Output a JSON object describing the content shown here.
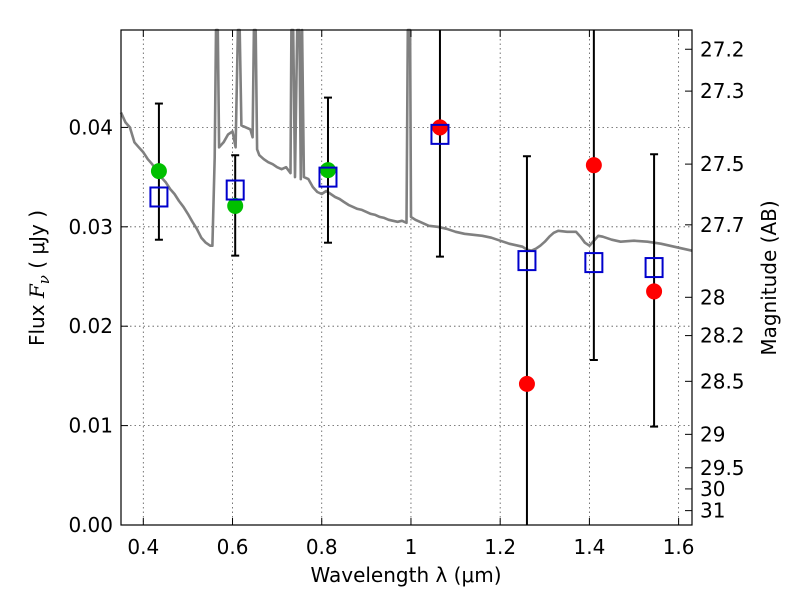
{
  "chart_data": {
    "type": "scatter",
    "xlabel": "Wavelength  λ (μm)",
    "ylabel_prefix": "Flux  ",
    "ylabel_symbol": "F",
    "ylabel_sub": "ν",
    "ylabel_suffix": "  ( μJy )",
    "y2label": "Magnitude (AB)",
    "xlim": [
      0.35,
      1.63
    ],
    "ylim": [
      0.0,
      0.0498
    ],
    "grid": true,
    "x_ticks": [
      0.4,
      0.6,
      0.8,
      1.0,
      1.2,
      1.4,
      1.6
    ],
    "x_tick_labels": [
      "0.4",
      "0.6",
      "0.8",
      "1",
      "1.2",
      "1.4",
      "1.6"
    ],
    "y_ticks": [
      0.0,
      0.01,
      0.02,
      0.03,
      0.04
    ],
    "y_tick_labels": [
      "0.00",
      "0.01",
      "0.02",
      "0.03",
      "0.04"
    ],
    "y2_tick_labels": [
      "27.2",
      "27.3",
      "27.5",
      "27.7",
      "28",
      "28.2",
      "28.5",
      "29",
      "29.5",
      "30",
      "31"
    ],
    "series": [
      {
        "marker": "circle",
        "color": "#00c000",
        "points": [
          {
            "x": 0.435,
            "y": 0.0356
          },
          {
            "x": 0.606,
            "y": 0.0321
          },
          {
            "x": 0.814,
            "y": 0.0357
          }
        ]
      },
      {
        "marker": "circle",
        "color": "#ff0000",
        "points": [
          {
            "x": 1.065,
            "y": 0.04
          },
          {
            "x": 1.26,
            "y": 0.0142
          },
          {
            "x": 1.41,
            "y": 0.0362
          },
          {
            "x": 1.545,
            "y": 0.0235
          }
        ]
      },
      {
        "marker": "square-open",
        "color": "#0000cc",
        "points": [
          {
            "x": 0.435,
            "y": 0.033,
            "ylow": 0.0287,
            "yhigh": 0.0424
          },
          {
            "x": 0.606,
            "y": 0.0337,
            "ylow": 0.0271,
            "yhigh": 0.0372
          },
          {
            "x": 0.814,
            "y": 0.035,
            "ylow": 0.0284,
            "yhigh": 0.043
          },
          {
            "x": 1.065,
            "y": 0.0393,
            "ylow": 0.027,
            "yhigh": 0.0498
          },
          {
            "x": 1.26,
            "y": 0.0266,
            "ylow": 0.0,
            "yhigh": 0.0371
          },
          {
            "x": 1.41,
            "y": 0.0264,
            "ylow": 0.0166,
            "yhigh": 0.0498
          },
          {
            "x": 1.545,
            "y": 0.0259,
            "ylow": 0.0099,
            "yhigh": 0.0373
          }
        ]
      },
      {
        "marker": "line",
        "color": "#808080",
        "points": [
          {
            "x": 0.35,
            "y": 0.0415
          },
          {
            "x": 0.36,
            "y": 0.0405
          },
          {
            "x": 0.37,
            "y": 0.04
          },
          {
            "x": 0.38,
            "y": 0.0385
          },
          {
            "x": 0.39,
            "y": 0.038
          },
          {
            "x": 0.4,
            "y": 0.0375
          },
          {
            "x": 0.41,
            "y": 0.0368
          },
          {
            "x": 0.42,
            "y": 0.0363
          },
          {
            "x": 0.43,
            "y": 0.0356
          },
          {
            "x": 0.44,
            "y": 0.035
          },
          {
            "x": 0.45,
            "y": 0.0345
          },
          {
            "x": 0.46,
            "y": 0.0338
          },
          {
            "x": 0.47,
            "y": 0.0333
          },
          {
            "x": 0.48,
            "y": 0.0326
          },
          {
            "x": 0.49,
            "y": 0.032
          },
          {
            "x": 0.5,
            "y": 0.0313
          },
          {
            "x": 0.51,
            "y": 0.0305
          },
          {
            "x": 0.52,
            "y": 0.0298
          },
          {
            "x": 0.53,
            "y": 0.0289
          },
          {
            "x": 0.54,
            "y": 0.0284
          },
          {
            "x": 0.55,
            "y": 0.0281
          },
          {
            "x": 0.555,
            "y": 0.0281
          },
          {
            "x": 0.56,
            "y": 0.037
          },
          {
            "x": 0.563,
            "y": 0.0498
          },
          {
            "x": 0.567,
            "y": 0.0498
          },
          {
            "x": 0.57,
            "y": 0.038
          },
          {
            "x": 0.58,
            "y": 0.0385
          },
          {
            "x": 0.59,
            "y": 0.0393
          },
          {
            "x": 0.6,
            "y": 0.0396
          },
          {
            "x": 0.607,
            "y": 0.038
          },
          {
            "x": 0.612,
            "y": 0.0498
          },
          {
            "x": 0.616,
            "y": 0.0498
          },
          {
            "x": 0.62,
            "y": 0.0402
          },
          {
            "x": 0.63,
            "y": 0.04
          },
          {
            "x": 0.64,
            "y": 0.0398
          },
          {
            "x": 0.645,
            "y": 0.039
          },
          {
            "x": 0.648,
            "y": 0.0498
          },
          {
            "x": 0.652,
            "y": 0.0498
          },
          {
            "x": 0.655,
            "y": 0.0378
          },
          {
            "x": 0.66,
            "y": 0.0372
          },
          {
            "x": 0.67,
            "y": 0.0368
          },
          {
            "x": 0.68,
            "y": 0.0365
          },
          {
            "x": 0.69,
            "y": 0.0363
          },
          {
            "x": 0.7,
            "y": 0.036
          },
          {
            "x": 0.71,
            "y": 0.0358
          },
          {
            "x": 0.72,
            "y": 0.036
          },
          {
            "x": 0.73,
            "y": 0.0354
          },
          {
            "x": 0.732,
            "y": 0.0498
          },
          {
            "x": 0.736,
            "y": 0.0498
          },
          {
            "x": 0.74,
            "y": 0.035
          },
          {
            "x": 0.745,
            "y": 0.0498
          },
          {
            "x": 0.75,
            "y": 0.0498
          },
          {
            "x": 0.753,
            "y": 0.0348
          },
          {
            "x": 0.756,
            "y": 0.0498
          },
          {
            "x": 0.76,
            "y": 0.035
          },
          {
            "x": 0.77,
            "y": 0.0348
          },
          {
            "x": 0.78,
            "y": 0.034
          },
          {
            "x": 0.79,
            "y": 0.0335
          },
          {
            "x": 0.8,
            "y": 0.0333
          },
          {
            "x": 0.81,
            "y": 0.0336
          },
          {
            "x": 0.82,
            "y": 0.0333
          },
          {
            "x": 0.83,
            "y": 0.033
          },
          {
            "x": 0.84,
            "y": 0.0328
          },
          {
            "x": 0.85,
            "y": 0.0325
          },
          {
            "x": 0.86,
            "y": 0.0322
          },
          {
            "x": 0.87,
            "y": 0.032
          },
          {
            "x": 0.88,
            "y": 0.0318
          },
          {
            "x": 0.89,
            "y": 0.0317
          },
          {
            "x": 0.9,
            "y": 0.0315
          },
          {
            "x": 0.91,
            "y": 0.0313
          },
          {
            "x": 0.92,
            "y": 0.0312
          },
          {
            "x": 0.93,
            "y": 0.031
          },
          {
            "x": 0.94,
            "y": 0.0309
          },
          {
            "x": 0.95,
            "y": 0.0307
          },
          {
            "x": 0.96,
            "y": 0.0306
          },
          {
            "x": 0.97,
            "y": 0.0305
          },
          {
            "x": 0.98,
            "y": 0.0306
          },
          {
            "x": 0.99,
            "y": 0.0304
          },
          {
            "x": 0.993,
            "y": 0.0498
          },
          {
            "x": 0.998,
            "y": 0.0498
          },
          {
            "x": 1.0,
            "y": 0.031
          },
          {
            "x": 1.01,
            "y": 0.0307
          },
          {
            "x": 1.02,
            "y": 0.0305
          },
          {
            "x": 1.04,
            "y": 0.0301
          },
          {
            "x": 1.06,
            "y": 0.03
          },
          {
            "x": 1.08,
            "y": 0.0298
          },
          {
            "x": 1.1,
            "y": 0.0295
          },
          {
            "x": 1.12,
            "y": 0.0293
          },
          {
            "x": 1.14,
            "y": 0.0292
          },
          {
            "x": 1.16,
            "y": 0.0291
          },
          {
            "x": 1.18,
            "y": 0.0289
          },
          {
            "x": 1.2,
            "y": 0.0286
          },
          {
            "x": 1.22,
            "y": 0.0283
          },
          {
            "x": 1.24,
            "y": 0.0281
          },
          {
            "x": 1.25,
            "y": 0.028
          },
          {
            "x": 1.26,
            "y": 0.0277
          },
          {
            "x": 1.27,
            "y": 0.0276
          },
          {
            "x": 1.28,
            "y": 0.0278
          },
          {
            "x": 1.29,
            "y": 0.0281
          },
          {
            "x": 1.3,
            "y": 0.0285
          },
          {
            "x": 1.31,
            "y": 0.029
          },
          {
            "x": 1.32,
            "y": 0.0294
          },
          {
            "x": 1.33,
            "y": 0.0296
          },
          {
            "x": 1.35,
            "y": 0.0295
          },
          {
            "x": 1.37,
            "y": 0.0295
          },
          {
            "x": 1.38,
            "y": 0.029
          },
          {
            "x": 1.39,
            "y": 0.0284
          },
          {
            "x": 1.4,
            "y": 0.0281
          },
          {
            "x": 1.41,
            "y": 0.0286
          },
          {
            "x": 1.42,
            "y": 0.0291
          },
          {
            "x": 1.43,
            "y": 0.029
          },
          {
            "x": 1.45,
            "y": 0.0287
          },
          {
            "x": 1.47,
            "y": 0.0285
          },
          {
            "x": 1.5,
            "y": 0.0286
          },
          {
            "x": 1.53,
            "y": 0.0285
          },
          {
            "x": 1.56,
            "y": 0.0283
          },
          {
            "x": 1.58,
            "y": 0.0281
          },
          {
            "x": 1.6,
            "y": 0.0279
          },
          {
            "x": 1.63,
            "y": 0.0276
          }
        ]
      }
    ]
  }
}
